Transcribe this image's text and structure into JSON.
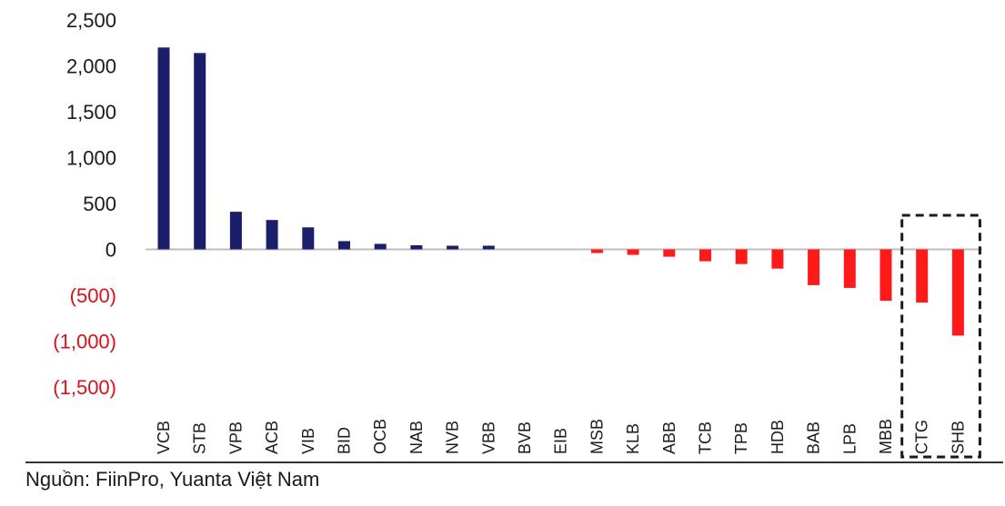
{
  "chart_data": {
    "type": "bar",
    "title": "",
    "xlabel": "",
    "ylabel": "",
    "ylim": [
      -1500,
      2500
    ],
    "yticks": [
      2500,
      2000,
      1500,
      1000,
      500,
      0,
      -500,
      -1000,
      -1500
    ],
    "ytick_labels": [
      "2,500",
      "2,000",
      "1,500",
      "1,000",
      "500",
      "0",
      "(500)",
      "(1,000)",
      "(1,500)"
    ],
    "categories": [
      "VCB",
      "STB",
      "VPB",
      "ACB",
      "VIB",
      "BID",
      "OCB",
      "NAB",
      "NVB",
      "VBB",
      "BVB",
      "EIB",
      "MSB",
      "KLB",
      "ABB",
      "TCB",
      "TPB",
      "HDB",
      "BAB",
      "LPB",
      "MBB",
      "CTG",
      "SHB"
    ],
    "values": [
      2200,
      2140,
      410,
      320,
      240,
      90,
      60,
      45,
      40,
      40,
      0,
      0,
      -40,
      -60,
      -80,
      -130,
      -160,
      -210,
      -390,
      -420,
      -560,
      -580,
      -940
    ],
    "highlighted": [
      "CTG",
      "SHB"
    ],
    "colors": {
      "positive": "#1b1f6b",
      "negative": "#ff1a1a",
      "negative_tick": "#d6121c",
      "positive_tick": "#1a1a1a"
    }
  },
  "source": "Nguồn: FiinPro, Yuanta Việt Nam"
}
